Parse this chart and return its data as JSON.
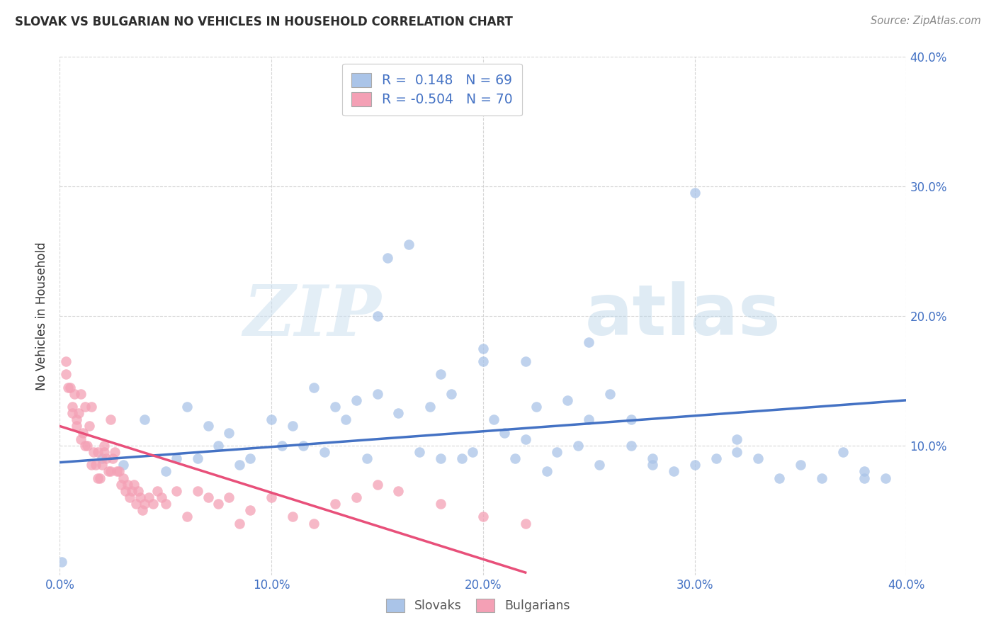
{
  "title": "SLOVAK VS BULGARIAN NO VEHICLES IN HOUSEHOLD CORRELATION CHART",
  "source": "Source: ZipAtlas.com",
  "ylabel": "No Vehicles in Household",
  "watermark_zip": "ZIP",
  "watermark_atlas": "atlas",
  "xlim": [
    0.0,
    0.4
  ],
  "ylim": [
    0.0,
    0.4
  ],
  "xticks": [
    0.0,
    0.1,
    0.2,
    0.3,
    0.4
  ],
  "yticks": [
    0.1,
    0.2,
    0.3,
    0.4
  ],
  "xtick_labels": [
    "0.0%",
    "10.0%",
    "20.0%",
    "30.0%",
    "40.0%"
  ],
  "ytick_labels": [
    "10.0%",
    "20.0%",
    "30.0%",
    "40.0%"
  ],
  "grid_color": "#cccccc",
  "background_color": "#ffffff",
  "slovak_color": "#aac4e8",
  "bulgarian_color": "#f4a0b5",
  "slovak_line_color": "#4472c4",
  "bulgarian_line_color": "#e8507a",
  "slovak_R": 0.148,
  "slovak_N": 69,
  "bulgarian_R": -0.504,
  "bulgarian_N": 70,
  "slovak_x": [
    0.001,
    0.02,
    0.03,
    0.04,
    0.05,
    0.055,
    0.06,
    0.065,
    0.07,
    0.075,
    0.08,
    0.085,
    0.09,
    0.1,
    0.105,
    0.11,
    0.115,
    0.12,
    0.125,
    0.13,
    0.135,
    0.14,
    0.145,
    0.15,
    0.155,
    0.16,
    0.165,
    0.17,
    0.175,
    0.18,
    0.185,
    0.19,
    0.195,
    0.2,
    0.205,
    0.21,
    0.215,
    0.22,
    0.225,
    0.23,
    0.235,
    0.24,
    0.245,
    0.25,
    0.255,
    0.26,
    0.27,
    0.28,
    0.29,
    0.3,
    0.31,
    0.32,
    0.33,
    0.34,
    0.35,
    0.36,
    0.37,
    0.38,
    0.39,
    0.2,
    0.22,
    0.25,
    0.27,
    0.28,
    0.3,
    0.32,
    0.38,
    0.15,
    0.18
  ],
  "slovak_y": [
    0.01,
    0.09,
    0.085,
    0.12,
    0.08,
    0.09,
    0.13,
    0.09,
    0.115,
    0.1,
    0.11,
    0.085,
    0.09,
    0.12,
    0.1,
    0.115,
    0.1,
    0.145,
    0.095,
    0.13,
    0.12,
    0.135,
    0.09,
    0.14,
    0.245,
    0.125,
    0.255,
    0.095,
    0.13,
    0.09,
    0.14,
    0.09,
    0.095,
    0.175,
    0.12,
    0.11,
    0.09,
    0.105,
    0.13,
    0.08,
    0.095,
    0.135,
    0.1,
    0.12,
    0.085,
    0.14,
    0.12,
    0.09,
    0.08,
    0.085,
    0.09,
    0.105,
    0.09,
    0.075,
    0.085,
    0.075,
    0.095,
    0.08,
    0.075,
    0.165,
    0.165,
    0.18,
    0.1,
    0.085,
    0.295,
    0.095,
    0.075,
    0.2,
    0.155
  ],
  "bulgarian_x": [
    0.003,
    0.005,
    0.006,
    0.007,
    0.008,
    0.009,
    0.01,
    0.011,
    0.012,
    0.013,
    0.014,
    0.015,
    0.016,
    0.017,
    0.018,
    0.019,
    0.02,
    0.021,
    0.022,
    0.023,
    0.024,
    0.025,
    0.026,
    0.027,
    0.028,
    0.029,
    0.03,
    0.031,
    0.032,
    0.033,
    0.034,
    0.035,
    0.036,
    0.037,
    0.038,
    0.039,
    0.04,
    0.042,
    0.044,
    0.046,
    0.048,
    0.05,
    0.055,
    0.06,
    0.065,
    0.07,
    0.075,
    0.08,
    0.085,
    0.09,
    0.1,
    0.11,
    0.12,
    0.13,
    0.14,
    0.15,
    0.16,
    0.18,
    0.2,
    0.22,
    0.003,
    0.004,
    0.006,
    0.008,
    0.01,
    0.012,
    0.015,
    0.018,
    0.021,
    0.024
  ],
  "bulgarian_y": [
    0.155,
    0.145,
    0.13,
    0.14,
    0.12,
    0.125,
    0.14,
    0.11,
    0.13,
    0.1,
    0.115,
    0.13,
    0.095,
    0.085,
    0.095,
    0.075,
    0.085,
    0.1,
    0.09,
    0.08,
    0.12,
    0.09,
    0.095,
    0.08,
    0.08,
    0.07,
    0.075,
    0.065,
    0.07,
    0.06,
    0.065,
    0.07,
    0.055,
    0.065,
    0.06,
    0.05,
    0.055,
    0.06,
    0.055,
    0.065,
    0.06,
    0.055,
    0.065,
    0.045,
    0.065,
    0.06,
    0.055,
    0.06,
    0.04,
    0.05,
    0.06,
    0.045,
    0.04,
    0.055,
    0.06,
    0.07,
    0.065,
    0.055,
    0.045,
    0.04,
    0.165,
    0.145,
    0.125,
    0.115,
    0.105,
    0.1,
    0.085,
    0.075,
    0.095,
    0.08
  ],
  "slovak_line_x": [
    0.0,
    0.4
  ],
  "slovak_line_y": [
    0.087,
    0.135
  ],
  "bulgarian_line_x": [
    0.0,
    0.22
  ],
  "bulgarian_line_y": [
    0.115,
    0.002
  ]
}
